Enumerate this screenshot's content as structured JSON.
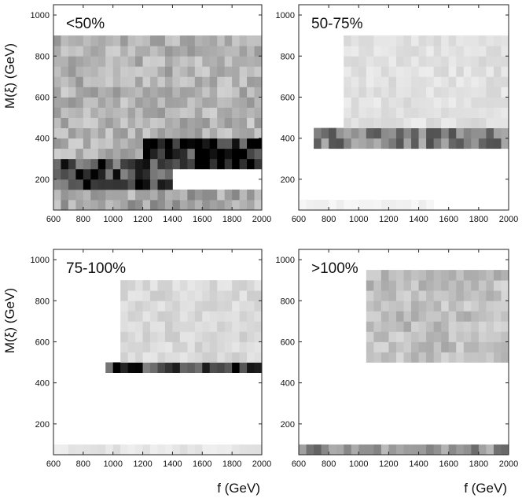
{
  "chart_data": {
    "type": "heatmap",
    "layout": "2x2",
    "xlabel": "f (GeV)",
    "ylabel": "M(ξ) (GeV)",
    "xlim": [
      600,
      2000
    ],
    "ylim": [
      50,
      1050
    ],
    "xticks": [
      600,
      800,
      1000,
      1200,
      1400,
      1600,
      1800,
      2000
    ],
    "yticks": [
      200,
      400,
      600,
      800,
      1000
    ],
    "bin_width_x": 50,
    "bin_width_y": 50,
    "colormap": "white-to-black grayscale",
    "panels": [
      {
        "label": "<50%",
        "bands": [
          {
            "f": [
              600,
              2000
            ],
            "m": [
              50,
              150
            ],
            "intensity": 0.35
          },
          {
            "f": [
              600,
              1400
            ],
            "m": [
              150,
              300
            ],
            "intensity": 0.75
          },
          {
            "f": [
              1200,
              2000
            ],
            "m": [
              250,
              400
            ],
            "intensity": 0.85
          },
          {
            "f": [
              600,
              2000
            ],
            "m": [
              300,
              900
            ],
            "intensity": 0.3
          }
        ]
      },
      {
        "label": "50-75%",
        "bands": [
          {
            "f": [
              700,
              2000
            ],
            "m": [
              350,
              450
            ],
            "intensity": 0.5
          },
          {
            "f": [
              900,
              2000
            ],
            "m": [
              450,
              900
            ],
            "intensity": 0.12
          },
          {
            "f": [
              600,
              1500
            ],
            "m": [
              50,
              100
            ],
            "intensity": 0.05
          }
        ]
      },
      {
        "label": "75-100%",
        "bands": [
          {
            "f": [
              950,
              2000
            ],
            "m": [
              450,
              500
            ],
            "intensity": 0.8
          },
          {
            "f": [
              1050,
              2000
            ],
            "m": [
              500,
              900
            ],
            "intensity": 0.15
          },
          {
            "f": [
              600,
              2000
            ],
            "m": [
              50,
              100
            ],
            "intensity": 0.1
          }
        ]
      },
      {
        "label": ">100%",
        "bands": [
          {
            "f": [
              1050,
              2000
            ],
            "m": [
              500,
              950
            ],
            "intensity": 0.25
          },
          {
            "f": [
              600,
              2000
            ],
            "m": [
              50,
              100
            ],
            "intensity": 0.45
          }
        ]
      }
    ]
  }
}
